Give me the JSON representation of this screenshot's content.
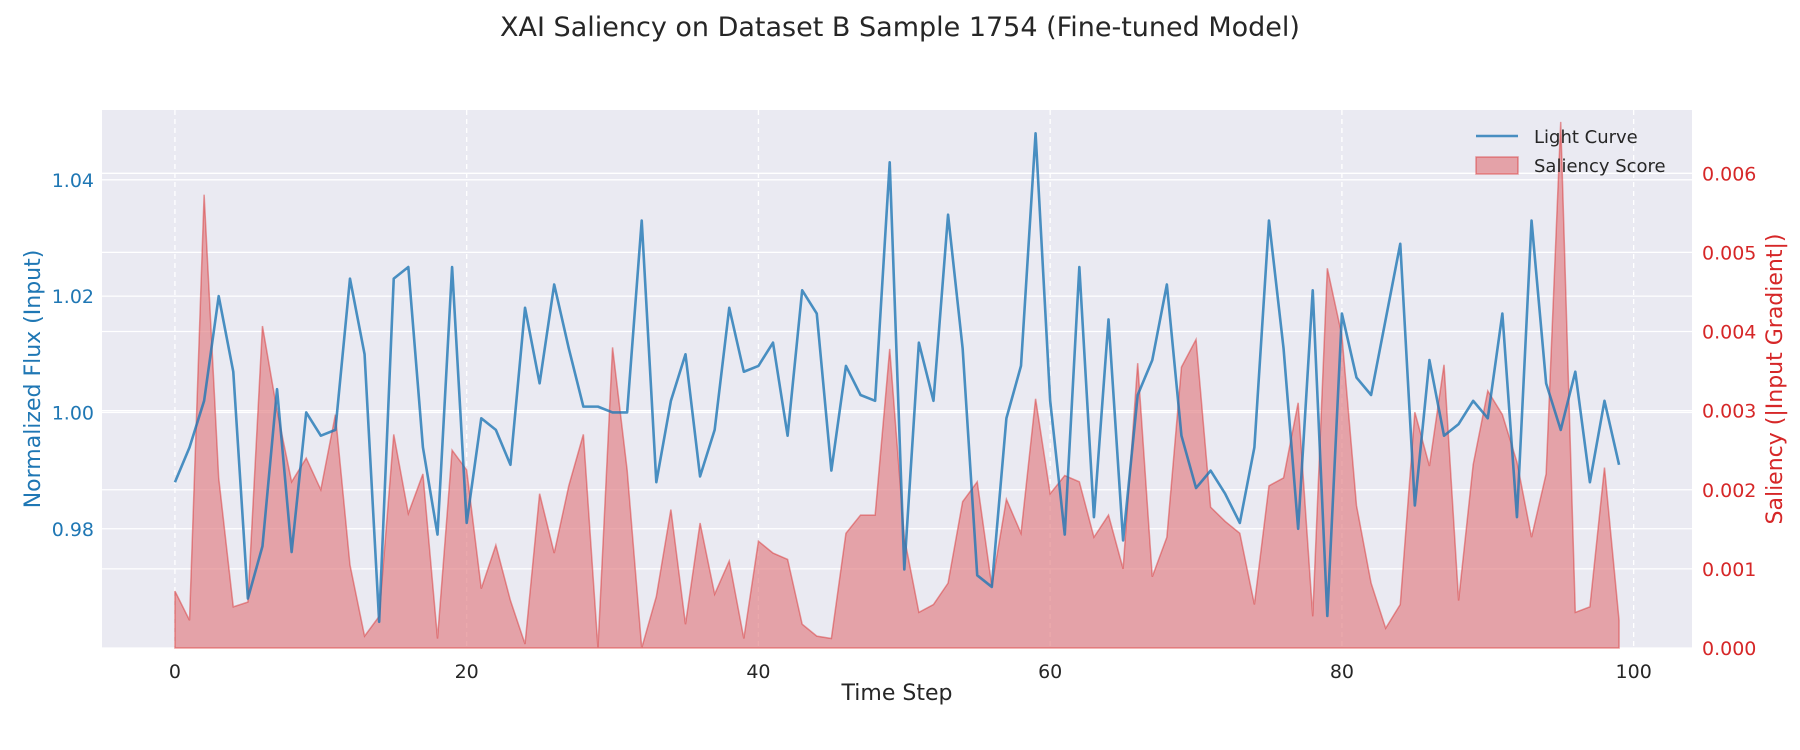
{
  "chart_data": {
    "type": "line",
    "title": "XAI Saliency on Dataset B Sample 1754 (Fine-tuned Model)",
    "xlabel": "Time Step",
    "ylabel_left": "Normalized Flux (Input)",
    "ylabel_right": "Saliency (|Input Gradient|)",
    "xlim": [
      -5,
      104
    ],
    "ylim_left": [
      0.9595,
      1.052
    ],
    "ylim_right": [
      0.0,
      0.0068
    ],
    "x_ticks": [
      0,
      20,
      40,
      60,
      80,
      100
    ],
    "y_left_ticks": [
      0.98,
      1.0,
      1.02,
      1.04
    ],
    "y_left_tick_labels": [
      "0.98",
      "1.00",
      "1.02",
      "1.04"
    ],
    "y_right_ticks": [
      0.0,
      0.001,
      0.002,
      0.003,
      0.004,
      0.005,
      0.006
    ],
    "y_right_tick_labels": [
      "0.000",
      "0.001",
      "0.002",
      "0.003",
      "0.004",
      "0.005",
      "0.006"
    ],
    "grid": true,
    "legend_position": "top-right",
    "colors": {
      "light_curve": "#1f77b4",
      "saliency_fill": "#e07b80",
      "saliency_edge": "#d62728",
      "plot_bg": "#eaeaf2"
    },
    "series": [
      {
        "name": "Light Curve",
        "axis": "left",
        "values": [
          0.988,
          0.994,
          1.002,
          1.02,
          1.007,
          0.968,
          0.977,
          1.004,
          0.976,
          1.0,
          0.996,
          0.997,
          1.023,
          1.01,
          0.964,
          1.023,
          1.025,
          0.994,
          0.979,
          1.025,
          0.981,
          0.999,
          0.997,
          0.991,
          1.018,
          1.005,
          1.022,
          1.011,
          1.001,
          1.001,
          1.0,
          1.0,
          1.033,
          0.988,
          1.002,
          1.01,
          0.989,
          0.997,
          1.018,
          1.007,
          1.008,
          1.012,
          0.996,
          1.021,
          1.017,
          0.99,
          1.008,
          1.003,
          1.002,
          1.043,
          0.973,
          1.012,
          1.002,
          1.034,
          1.011,
          0.972,
          0.97,
          0.999,
          1.008,
          1.048,
          1.002,
          0.979,
          1.025,
          0.982,
          1.016,
          0.978,
          1.003,
          1.009,
          1.022,
          0.996,
          0.987,
          0.99,
          0.986,
          0.981,
          0.994,
          1.033,
          1.011,
          0.98,
          1.021,
          0.965,
          1.017,
          1.006,
          1.003,
          1.016,
          1.029,
          0.984,
          1.009,
          0.996,
          0.998,
          1.002,
          0.999,
          1.017,
          0.982,
          1.033,
          1.005,
          0.997,
          1.007,
          0.988,
          1.002,
          0.991
        ]
      },
      {
        "name": "Saliency Score",
        "axis": "right",
        "values": [
          0.00072,
          0.00035,
          0.00573,
          0.00215,
          0.00052,
          0.00058,
          0.00407,
          0.003,
          0.0021,
          0.0024,
          0.002,
          0.00295,
          0.00105,
          0.00015,
          0.0004,
          0.0027,
          0.0017,
          0.0022,
          0.00012,
          0.0025,
          0.00225,
          0.00075,
          0.0013,
          0.0006,
          5e-05,
          0.00195,
          0.0012,
          0.00205,
          0.0027,
          0.0,
          0.0038,
          0.00225,
          0.0,
          0.00065,
          0.00175,
          0.0003,
          0.00158,
          0.00068,
          0.0011,
          0.00012,
          0.00135,
          0.0012,
          0.00112,
          0.0003,
          0.00015,
          0.00012,
          0.00145,
          0.00168,
          0.00168,
          0.00378,
          0.0014,
          0.00045,
          0.00055,
          0.00082,
          0.00185,
          0.0021,
          0.00078,
          0.00188,
          0.00145,
          0.00315,
          0.00195,
          0.00218,
          0.0021,
          0.0014,
          0.00168,
          0.001,
          0.0036,
          0.0009,
          0.0014,
          0.00355,
          0.0039,
          0.00178,
          0.0016,
          0.00145,
          0.00055,
          0.00205,
          0.00215,
          0.0031,
          0.0004,
          0.0048,
          0.00395,
          0.0018,
          0.00082,
          0.00025,
          0.00055,
          0.00298,
          0.0023,
          0.00358,
          0.0006,
          0.00232,
          0.00325,
          0.00295,
          0.00235,
          0.0014,
          0.0022,
          0.00665,
          0.00045,
          0.00052,
          0.00228,
          0.00035
        ]
      }
    ]
  }
}
